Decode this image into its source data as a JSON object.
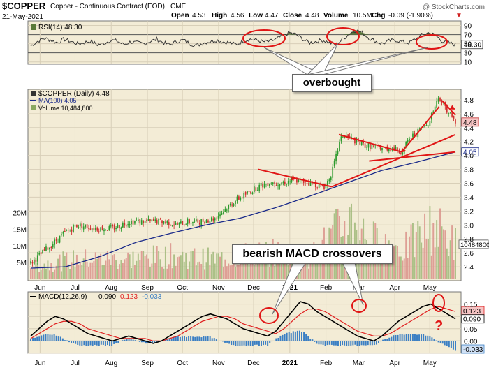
{
  "header": {
    "symbol": "$COPPER",
    "description": "Copper - Continuous Contract (EOD)",
    "exchange": "CME",
    "date": "21-May-2021",
    "open_label": "Open",
    "open": "4.53",
    "high_label": "High",
    "high": "4.56",
    "low_label": "Low",
    "low": "4.47",
    "close_label": "Close",
    "close": "4.48",
    "volume_label": "Volume",
    "volume": "10.5M",
    "chg_label": "Chg",
    "chg": "-0.09 (-1.90%)",
    "chg_arrow": "▼",
    "watermark": "@ StockCharts.com"
  },
  "annotations": {
    "overbought": "overbought",
    "bearish": "bearish MACD crossovers",
    "question": "?"
  },
  "colors": {
    "panel_bg": "#f3ecd6",
    "grid": "#d8cfb8",
    "up": "#2d9a2d",
    "down": "#d03030",
    "ma": "#1a2a8a",
    "macd": "#000000",
    "signal": "#e02020",
    "hist": "#3b7fc4",
    "annot": "#e01515",
    "rsi_fill": "#5a7a3a"
  },
  "chart_data": [
    {
      "type": "line",
      "title": "RSI(14) 48.30",
      "legend": "RSI(14) 48.30",
      "ylim": [
        5,
        100
      ],
      "ticks": [
        "90",
        "70",
        "50",
        "30",
        "10"
      ],
      "last_label": "48.30",
      "overbought_level": 70,
      "oversold_level": 30,
      "series": [
        {
          "name": "RSI(14)",
          "values": [
            45,
            55,
            62,
            58,
            52,
            60,
            55,
            50,
            52,
            56,
            48,
            50,
            58,
            56,
            48,
            54,
            52,
            50,
            55,
            60,
            52,
            48,
            55,
            58,
            50,
            46,
            52,
            55,
            58,
            54,
            52,
            48,
            56,
            60,
            58,
            54,
            55,
            60,
            68,
            74,
            70,
            60,
            52,
            55,
            58,
            52,
            48,
            60,
            72,
            80,
            74,
            62,
            55,
            50,
            56,
            58,
            54,
            52,
            60,
            70,
            74,
            68,
            56,
            52,
            48
          ]
        }
      ]
    },
    {
      "type": "candlestick",
      "title": "$COPPER (Daily) 4.48",
      "legend": [
        "$COPPER (Daily) 4.48",
        "MA(100) 4.05",
        "Volume 10,484,800"
      ],
      "ylim": [
        2.2,
        4.95
      ],
      "ticks": [
        "4.8",
        "4.6",
        "4.4",
        "4.2",
        "4.0",
        "3.8",
        "3.6",
        "3.4",
        "3.2",
        "3.0",
        "2.8",
        "2.6",
        "2.4"
      ],
      "last_price_label": "4.48",
      "ma_label": "4.05",
      "volume_label": "10484800",
      "volume_ticks": [
        "20M",
        "15M",
        "10M",
        "5M"
      ],
      "volume_max": 23,
      "x_labels": [
        "Jun",
        "Jul",
        "Aug",
        "Sep",
        "Oct",
        "Nov",
        "Dec",
        "2021",
        "Feb",
        "Mar",
        "Apr",
        "May"
      ],
      "x_label_days": [
        8,
        38,
        69,
        100,
        130,
        161,
        191,
        222,
        253,
        281,
        312,
        342
      ],
      "days_total": 364,
      "price_keypoints": [
        [
          0,
          2.45
        ],
        [
          10,
          2.6
        ],
        [
          20,
          2.75
        ],
        [
          30,
          2.9
        ],
        [
          40,
          3.0
        ],
        [
          55,
          2.95
        ],
        [
          70,
          2.95
        ],
        [
          85,
          3.05
        ],
        [
          100,
          3.05
        ],
        [
          115,
          3.05
        ],
        [
          125,
          3.0
        ],
        [
          135,
          3.05
        ],
        [
          145,
          3.05
        ],
        [
          158,
          3.1
        ],
        [
          175,
          3.35
        ],
        [
          195,
          3.55
        ],
        [
          205,
          3.62
        ],
        [
          215,
          3.6
        ],
        [
          225,
          3.65
        ],
        [
          240,
          3.6
        ],
        [
          252,
          3.55
        ],
        [
          258,
          3.75
        ],
        [
          265,
          4.2
        ],
        [
          268,
          4.3
        ],
        [
          285,
          4.15
        ],
        [
          295,
          4.12
        ],
        [
          310,
          4.1
        ],
        [
          318,
          4.05
        ],
        [
          325,
          4.25
        ],
        [
          340,
          4.45
        ],
        [
          350,
          4.85
        ],
        [
          357,
          4.65
        ],
        [
          364,
          4.48
        ]
      ],
      "ma_keypoints": [
        [
          0,
          2.38
        ],
        [
          30,
          2.4
        ],
        [
          60,
          2.55
        ],
        [
          90,
          2.75
        ],
        [
          120,
          2.88
        ],
        [
          150,
          3.0
        ],
        [
          180,
          3.1
        ],
        [
          210,
          3.25
        ],
        [
          240,
          3.42
        ],
        [
          270,
          3.6
        ],
        [
          300,
          3.78
        ],
        [
          330,
          3.9
        ],
        [
          364,
          4.05
        ]
      ],
      "volume_keypoints": [
        [
          0,
          4
        ],
        [
          40,
          6
        ],
        [
          80,
          6
        ],
        [
          120,
          7
        ],
        [
          160,
          6
        ],
        [
          200,
          8
        ],
        [
          240,
          7
        ],
        [
          262,
          14
        ],
        [
          275,
          18
        ],
        [
          290,
          12
        ],
        [
          320,
          9
        ],
        [
          345,
          16
        ],
        [
          364,
          10.5
        ]
      ],
      "trend_lines": [
        [
          195,
          3.8,
          258,
          3.55
        ],
        [
          258,
          3.55,
          364,
          4.3
        ],
        [
          264,
          4.3,
          318,
          4.05
        ],
        [
          318,
          4.05,
          350,
          4.7
        ],
        [
          353,
          4.78,
          364,
          4.58
        ],
        [
          290,
          3.92,
          364,
          4.05
        ]
      ]
    },
    {
      "type": "line",
      "title": "MACD(12,26,9) 0.090, 0.123, -0.033",
      "legend": {
        "name": "MACD(12,26,9)",
        "macd": "0.090",
        "signal": "0.123",
        "hist": "-0.033"
      },
      "ylim": [
        -0.05,
        0.2
      ],
      "ticks": [
        "0.15",
        "0.10",
        "0.05",
        "0.00",
        "-0.05"
      ],
      "last_labels": [
        "0.123",
        "0.090",
        "-0.033"
      ],
      "series": [
        {
          "name": "MACD",
          "values": [
            0.02,
            0.05,
            0.08,
            0.1,
            0.09,
            0.07,
            0.05,
            0.03,
            0.02,
            0.01,
            0.0,
            0.01,
            0.02,
            0.01,
            0.0,
            -0.01,
            0.0,
            0.02,
            0.04,
            0.06,
            0.08,
            0.1,
            0.11,
            0.1,
            0.09,
            0.07,
            0.05,
            0.04,
            0.03,
            0.02,
            0.04,
            0.08,
            0.12,
            0.16,
            0.15,
            0.12,
            0.1,
            0.08,
            0.06,
            0.04,
            0.02,
            0.01,
            0.0,
            0.02,
            0.05,
            0.08,
            0.1,
            0.12,
            0.14,
            0.15,
            0.13,
            0.11,
            0.09
          ]
        },
        {
          "name": "Signal",
          "values": [
            0.01,
            0.03,
            0.05,
            0.07,
            0.08,
            0.08,
            0.07,
            0.05,
            0.04,
            0.03,
            0.02,
            0.01,
            0.01,
            0.01,
            0.01,
            0.0,
            0.0,
            0.01,
            0.02,
            0.04,
            0.06,
            0.08,
            0.09,
            0.1,
            0.1,
            0.09,
            0.07,
            0.06,
            0.05,
            0.04,
            0.03,
            0.05,
            0.08,
            0.11,
            0.13,
            0.13,
            0.12,
            0.1,
            0.08,
            0.06,
            0.04,
            0.03,
            0.02,
            0.02,
            0.03,
            0.05,
            0.07,
            0.09,
            0.11,
            0.13,
            0.14,
            0.13,
            0.12
          ]
        }
      ]
    }
  ]
}
